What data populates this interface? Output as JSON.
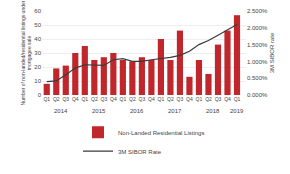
{
  "chart_data": {
    "type": "bar",
    "categories": [
      "Q1",
      "Q2",
      "Q3",
      "Q4",
      "Q1",
      "Q2",
      "Q3",
      "Q4",
      "Q1",
      "Q2",
      "Q3",
      "Q4",
      "Q1",
      "Q2",
      "Q3",
      "Q4",
      "Q1",
      "Q2",
      "Q3",
      "Q4",
      "Q1"
    ],
    "series": [
      {
        "name": "Non-Landed Residential Listings",
        "type": "bar",
        "color": "#c0272d",
        "values": [
          8,
          19,
          21,
          30,
          35,
          25,
          27,
          30,
          25,
          24,
          27,
          25,
          40,
          25,
          46,
          13,
          25,
          15,
          36,
          46,
          57
        ]
      },
      {
        "name": "3M SIBOR Rate",
        "type": "line",
        "axis": "y2",
        "color": "#3a3a3a",
        "values": [
          0.4,
          0.42,
          0.6,
          0.8,
          0.9,
          0.9,
          0.88,
          1.05,
          1.08,
          1.0,
          1.0,
          1.05,
          1.08,
          1.12,
          1.18,
          1.3,
          1.5,
          1.62,
          1.78,
          1.95,
          2.1
        ]
      }
    ],
    "ylabel": "Number of non-landed/residential listings under\nmortgagee sale",
    "y2label": "3M SIBOR rate",
    "ylim": [
      0,
      60
    ],
    "yticks": [
      0,
      10,
      20,
      30,
      40,
      50,
      60
    ],
    "y2lim": [
      0.0,
      2.5
    ],
    "y2ticks": [
      {
        "value": 0.0,
        "label": "0.000%"
      },
      {
        "value": 0.5,
        "label": "0.500%"
      },
      {
        "value": 1.0,
        "label": "1.000%"
      },
      {
        "value": 1.5,
        "label": "1.500%"
      },
      {
        "value": 2.0,
        "label": "2.000%"
      },
      {
        "value": 2.5,
        "label": "2.500%"
      }
    ],
    "annotations": [
      {
        "text": "2014",
        "x": 1.5
      },
      {
        "text": "2015",
        "x": 5.5
      },
      {
        "text": "2016",
        "x": 9.5
      },
      {
        "text": "2017",
        "x": 13.5
      },
      {
        "text": "2018",
        "x": 17.5
      },
      {
        "text": "2019",
        "x": 20
      }
    ],
    "grid": true,
    "legend": "bottom"
  }
}
